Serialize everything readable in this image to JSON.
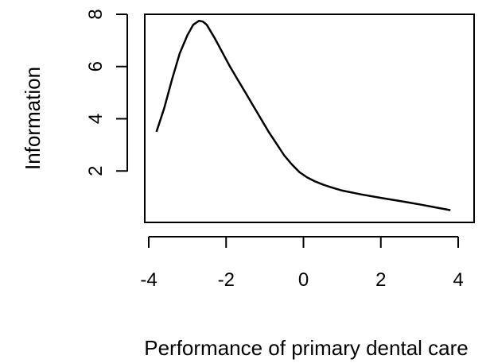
{
  "chart_data": {
    "type": "line",
    "title": "",
    "xlabel": "Performance of primary dental care",
    "ylabel": "Information",
    "xlim": [
      -4,
      4
    ],
    "ylim": [
      0,
      8
    ],
    "xticks": [
      -4,
      -2,
      0,
      2,
      4
    ],
    "yticks": [
      2,
      4,
      6,
      8
    ],
    "xtick_labels": [
      "-4",
      "-2",
      "0",
      "2",
      "4"
    ],
    "ytick_labels": [
      "2",
      "4",
      "6",
      "8"
    ],
    "grid": false,
    "series": [
      {
        "x": [
          -3.8,
          -3.6,
          -3.4,
          -3.2,
          -3.0,
          -2.85,
          -2.7,
          -2.6,
          -2.5,
          -2.3,
          -2.1,
          -1.9,
          -1.7,
          -1.5,
          -1.3,
          -1.1,
          -0.9,
          -0.7,
          -0.5,
          -0.3,
          -0.1,
          0.1,
          0.3,
          0.5,
          0.7,
          1.0,
          1.5,
          2.0,
          2.5,
          3.0,
          3.5,
          3.8
        ],
        "y": [
          3.5,
          4.4,
          5.5,
          6.5,
          7.2,
          7.6,
          7.75,
          7.72,
          7.6,
          7.1,
          6.55,
          6.0,
          5.5,
          5.0,
          4.5,
          4.0,
          3.5,
          3.05,
          2.6,
          2.25,
          1.95,
          1.75,
          1.6,
          1.48,
          1.38,
          1.25,
          1.1,
          0.97,
          0.85,
          0.72,
          0.58,
          0.5
        ]
      }
    ]
  }
}
